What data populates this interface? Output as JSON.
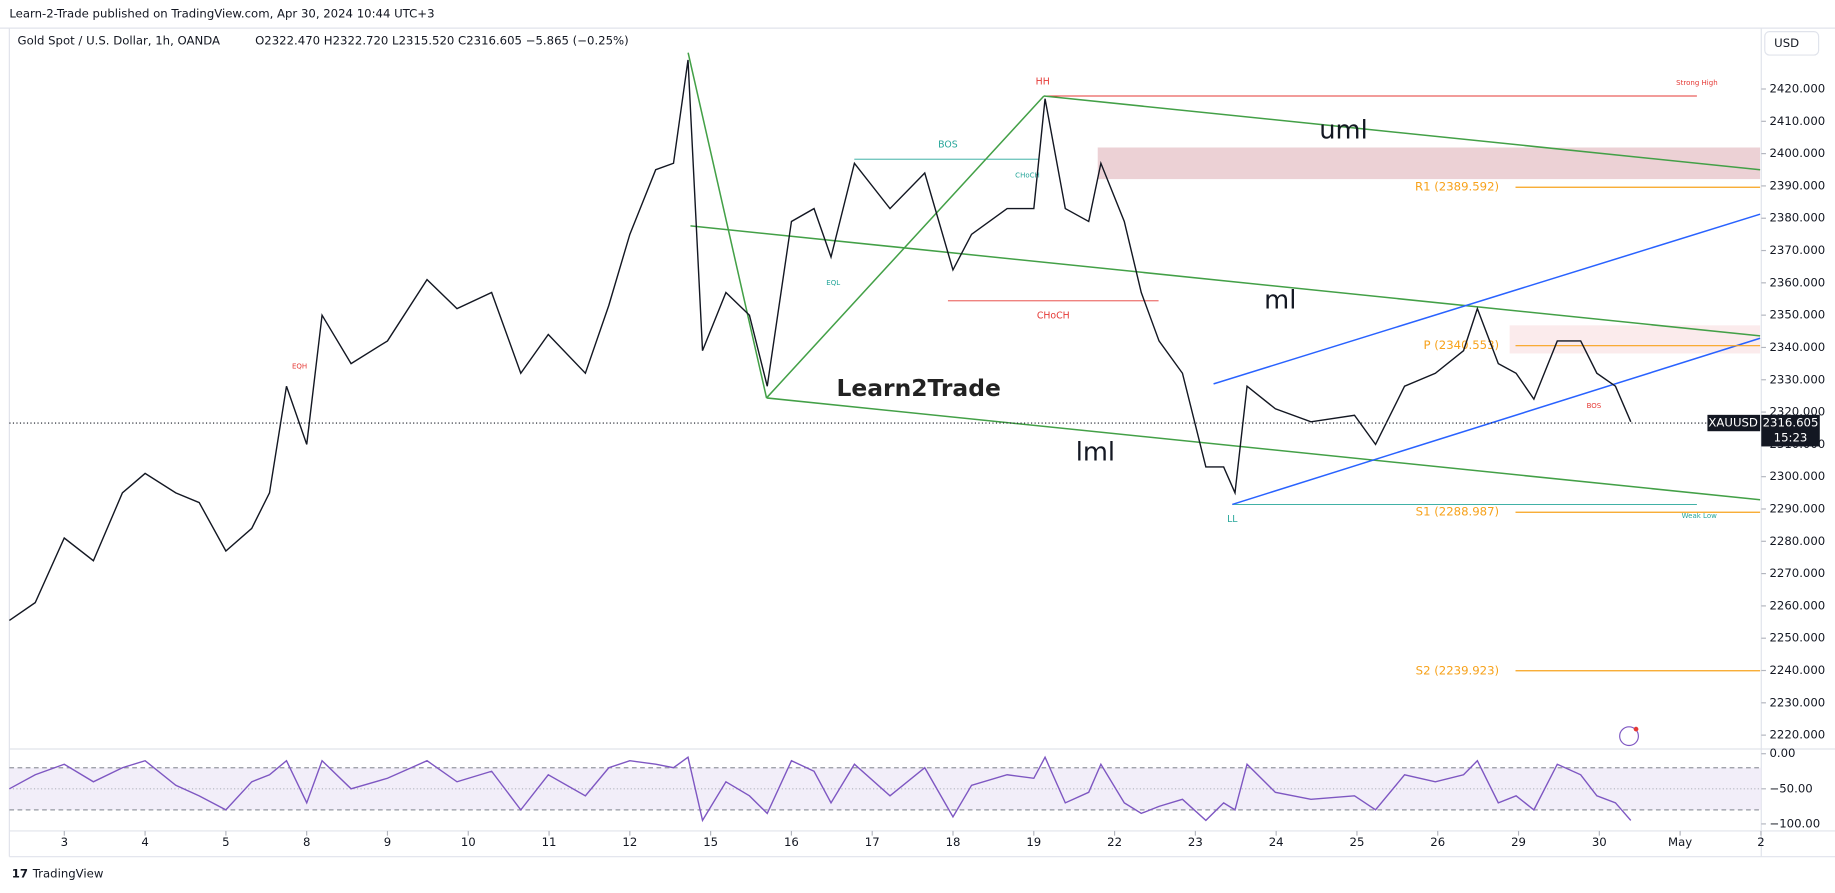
{
  "header": "Learn-2-Trade published on TradingView.com, Apr 30, 2024 10:44 UTC+3",
  "footer": "TradingView",
  "currency": "USD",
  "chart_data": [
    {
      "type": "line",
      "title": "Gold Spot / U.S. Dollar, 1h, OANDA",
      "legend_values": "O2322.470  H2322.720  L2315.520  C2316.605  −5.865 (−0.25%)",
      "color": "#131722",
      "x": [
        -0.68,
        -0.36,
        0,
        0.36,
        0.72,
        1,
        1.38,
        1.67,
        2,
        2.32,
        2.54,
        2.75,
        3,
        3.19,
        3.55,
        4,
        4.49,
        4.86,
        5.29,
        5.65,
        5.99,
        6.45,
        6.74,
        7,
        7.32,
        7.54,
        7.72,
        7.9,
        8.19,
        8.48,
        8.7,
        9,
        9.28,
        9.49,
        9.78,
        10.22,
        10.65,
        11,
        11.23,
        11.67,
        12,
        12.14,
        12.39,
        12.68,
        12.83,
        13.12,
        13.33,
        13.55,
        13.84,
        14.13,
        14.35,
        14.49,
        14.64,
        14.99,
        15.43,
        15.97,
        16.23,
        16.59,
        16.97,
        17.32,
        17.49,
        17.75,
        17.97,
        18.19,
        18.48,
        18.77,
        18.97,
        19.2,
        19.39
      ],
      "values": [
        2255.5,
        2261,
        2281,
        2274,
        2295,
        2301,
        2295,
        2292,
        2277,
        2284,
        2295,
        2328,
        2310,
        2350,
        2335,
        2342,
        2361,
        2352,
        2357,
        2332,
        2344,
        2332,
        2353,
        2375,
        2395,
        2397,
        2429,
        2339,
        2357,
        2350,
        2328,
        2379,
        2383,
        2368,
        2397,
        2383,
        2394,
        2364,
        2375,
        2383,
        2383,
        2417,
        2383,
        2379,
        2397,
        2379,
        2357,
        2342,
        2332,
        2303,
        2303,
        2295,
        2328,
        2321,
        2317,
        2319,
        2310,
        2328,
        2332,
        2339,
        2352,
        2335,
        2332,
        2324,
        2342,
        2342,
        2332,
        2328,
        2317
      ],
      "xlim": [
        -0.68,
        20.99
      ],
      "ylim": [
        2215.7,
        2431.6
      ],
      "xticks": [
        {
          "value": 0,
          "label": "3"
        },
        {
          "value": 1,
          "label": "4"
        },
        {
          "value": 2,
          "label": "5"
        },
        {
          "value": 3,
          "label": "8"
        },
        {
          "value": 4,
          "label": "9"
        },
        {
          "value": 5,
          "label": "10"
        },
        {
          "value": 6,
          "label": "11"
        },
        {
          "value": 7,
          "label": "12"
        },
        {
          "value": 8,
          "label": "15"
        },
        {
          "value": 9,
          "label": "16"
        },
        {
          "value": 10,
          "label": "17"
        },
        {
          "value": 11,
          "label": "18"
        },
        {
          "value": 12,
          "label": "19"
        },
        {
          "value": 13,
          "label": "22"
        },
        {
          "value": 14,
          "label": "23"
        },
        {
          "value": 15,
          "label": "24"
        },
        {
          "value": 16,
          "label": "25"
        },
        {
          "value": 17,
          "label": "26"
        },
        {
          "value": 18,
          "label": "29"
        },
        {
          "value": 19,
          "label": "30"
        },
        {
          "value": 20,
          "label": "May"
        },
        {
          "value": 21,
          "label": "2"
        }
      ],
      "yticks": [
        {
          "value": 2220,
          "label": "2220.000"
        },
        {
          "value": 2230,
          "label": "2230.000"
        },
        {
          "value": 2240,
          "label": "2240.000"
        },
        {
          "value": 2250,
          "label": "2250.000"
        },
        {
          "value": 2260,
          "label": "2260.000"
        },
        {
          "value": 2270,
          "label": "2270.000"
        },
        {
          "value": 2280,
          "label": "2280.000"
        },
        {
          "value": 2290,
          "label": "2290.000"
        },
        {
          "value": 2300,
          "label": "2300.000"
        },
        {
          "value": 2310,
          "label": "2310.000"
        },
        {
          "value": 2320,
          "label": "2320.000"
        },
        {
          "value": 2330,
          "label": "2330.000"
        },
        {
          "value": 2340,
          "label": "2340.000"
        },
        {
          "value": 2350,
          "label": "2350.000"
        },
        {
          "value": 2360,
          "label": "2360.000"
        },
        {
          "value": 2370,
          "label": "2370.000"
        },
        {
          "value": 2380,
          "label": "2380.000"
        },
        {
          "value": 2390,
          "label": "2390.000"
        },
        {
          "value": 2400,
          "label": "2400.000"
        },
        {
          "value": 2410,
          "label": "2410.000"
        },
        {
          "value": 2420,
          "label": "2420.000"
        }
      ],
      "last_price": 2316.605,
      "last_price_symbol": "XAUUSD",
      "countdown": "15:23",
      "levels": [
        {
          "label": "R1 (2389.592)",
          "value": 2389.592,
          "color": "#f7a21b"
        },
        {
          "label": "P (2340.553)",
          "value": 2340.553,
          "color": "#f7a21b"
        },
        {
          "label": "S1 (2288.987)",
          "value": 2288.987,
          "color": "#f7a21b"
        },
        {
          "label": "S2 (2239.923)",
          "value": 2239.923,
          "color": "#f7a21b"
        }
      ],
      "annotations": [
        "uml",
        "ml",
        "lml",
        "HH",
        "LL",
        "BOS",
        "CHoCH",
        "EQL",
        "EQH",
        "CHoCH",
        "BOS",
        "Strong High",
        "Weak Low"
      ],
      "watermark": "Learn2Trade"
    },
    {
      "type": "line",
      "color": "#7e57c2",
      "x": [
        -0.68,
        -0.36,
        0,
        0.36,
        0.72,
        1,
        1.38,
        1.67,
        2,
        2.32,
        2.54,
        2.75,
        3,
        3.19,
        3.55,
        4,
        4.49,
        4.86,
        5.29,
        5.65,
        5.99,
        6.45,
        6.74,
        7,
        7.32,
        7.54,
        7.72,
        7.9,
        8.19,
        8.48,
        8.7,
        9,
        9.28,
        9.49,
        9.78,
        10.22,
        10.65,
        11,
        11.23,
        11.67,
        12,
        12.14,
        12.39,
        12.68,
        12.83,
        13.12,
        13.33,
        13.55,
        13.84,
        14.13,
        14.35,
        14.49,
        14.64,
        14.99,
        15.43,
        15.97,
        16.23,
        16.59,
        16.97,
        17.32,
        17.49,
        17.75,
        17.97,
        18.19,
        18.48,
        18.77,
        18.97,
        19.2,
        19.39
      ],
      "values": [
        -50,
        -30,
        -15,
        -40,
        -20,
        -10,
        -45,
        -60,
        -80,
        -40,
        -30,
        -10,
        -70,
        -10,
        -50,
        -35,
        -10,
        -40,
        -25,
        -80,
        -30,
        -60,
        -20,
        -10,
        -15,
        -20,
        -5,
        -95,
        -40,
        -60,
        -85,
        -10,
        -25,
        -70,
        -15,
        -60,
        -20,
        -90,
        -45,
        -30,
        -35,
        -5,
        -70,
        -55,
        -15,
        -70,
        -85,
        -75,
        -65,
        -95,
        -70,
        -80,
        -15,
        -55,
        -65,
        -60,
        -80,
        -30,
        -40,
        -30,
        -10,
        -70,
        -60,
        -80,
        -15,
        -30,
        -60,
        -70,
        -95
      ],
      "xlim": [
        -0.68,
        20.99
      ],
      "ylim": [
        -110,
        6.7
      ],
      "yticks": [
        {
          "value": 0,
          "label": "0.00"
        },
        {
          "value": -50,
          "label": "−50.00"
        },
        {
          "value": -100,
          "label": "−100.00"
        }
      ]
    }
  ]
}
